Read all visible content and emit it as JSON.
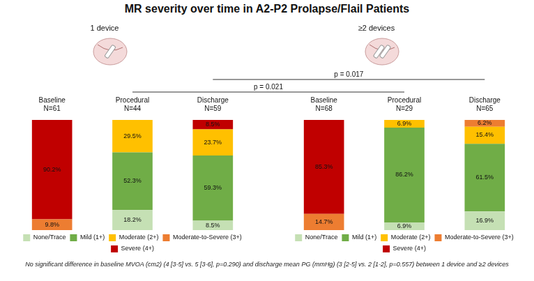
{
  "title": "MR severity over time in A2-P2 Prolapse/Flail Patients",
  "footnote": "No significant difference in baseline MVOA (cm2) (4 [3-5] vs. 5 [3-6], p=0.290) and discharge mean PG (mmHg) (3 [2-5] vs. 2 [1-2], p=0.557) between 1 device and ≥2 devices",
  "annotations": [
    {
      "text": "p = 0.017",
      "from": {
        "chart": 0,
        "category": "Discharge"
      },
      "to": {
        "chart": 1,
        "category": "Discharge"
      }
    },
    {
      "text": "p = 0.021",
      "from": {
        "chart": 0,
        "category": "Procedural"
      },
      "to": {
        "chart": 1,
        "category": "Procedural"
      }
    }
  ],
  "chart_data": [
    {
      "type": "bar",
      "title": "1 device",
      "stacked": true,
      "data_labels": true,
      "tick_labels": "x",
      "legend": "bottom",
      "grid": false,
      "ylim": [
        0,
        100
      ],
      "categories": [
        "Baseline",
        "Procedural",
        "Discharge"
      ],
      "n_labels": [
        "N=61",
        "N=44",
        "N=59"
      ],
      "series": [
        {
          "name": "None/Trace",
          "color": "#c5e0b4",
          "values": [
            null,
            18.2,
            8.5
          ],
          "value_labels": [
            null,
            "18.2%",
            "8.5%"
          ]
        },
        {
          "name": "Mild (1+)",
          "color": "#70ad47",
          "values": [
            null,
            52.3,
            59.3
          ],
          "value_labels": [
            null,
            "52.3%",
            "59.3%"
          ]
        },
        {
          "name": "Moderate (2+)",
          "color": "#ffc000",
          "values": [
            null,
            29.5,
            23.7
          ],
          "value_labels": [
            null,
            "29.5%",
            "23.7%"
          ]
        },
        {
          "name": "Moderate-to-Severe (3+)",
          "color": "#ed7d31",
          "values": [
            9.8,
            null,
            null
          ],
          "value_labels": [
            "9.8%",
            null,
            null
          ]
        },
        {
          "name": "Severe (4+)",
          "color": "#c00000",
          "values": [
            90.2,
            null,
            8.5
          ],
          "value_labels": [
            "90.2%",
            null,
            "8.5%"
          ]
        }
      ]
    },
    {
      "type": "bar",
      "title": "≥2 devices",
      "stacked": true,
      "data_labels": true,
      "tick_labels": "x",
      "legend": "bottom",
      "grid": false,
      "ylim": [
        0,
        100
      ],
      "categories": [
        "Baseline",
        "Procedural",
        "Discharge"
      ],
      "n_labels": [
        "N=68",
        "N=29",
        "N=65"
      ],
      "series": [
        {
          "name": "None/Trace",
          "color": "#c5e0b4",
          "values": [
            null,
            6.9,
            16.9
          ],
          "value_labels": [
            null,
            "6.9%",
            "16.9%"
          ]
        },
        {
          "name": "Mild (1+)",
          "color": "#70ad47",
          "values": [
            null,
            86.2,
            61.5
          ],
          "value_labels": [
            null,
            "86.2%",
            "61.5%"
          ]
        },
        {
          "name": "Moderate (2+)",
          "color": "#ffc000",
          "values": [
            null,
            6.9,
            15.4
          ],
          "value_labels": [
            null,
            "6.9%",
            "15.4%"
          ]
        },
        {
          "name": "Moderate-to-Severe (3+)",
          "color": "#ed7d31",
          "values": [
            14.7,
            null,
            6.2
          ],
          "value_labels": [
            "14.7%",
            null,
            "6.2%"
          ]
        },
        {
          "name": "Severe (4+)",
          "color": "#c00000",
          "values": [
            85.3,
            null,
            null
          ],
          "value_labels": [
            "85.3%",
            null,
            null
          ]
        }
      ]
    }
  ]
}
